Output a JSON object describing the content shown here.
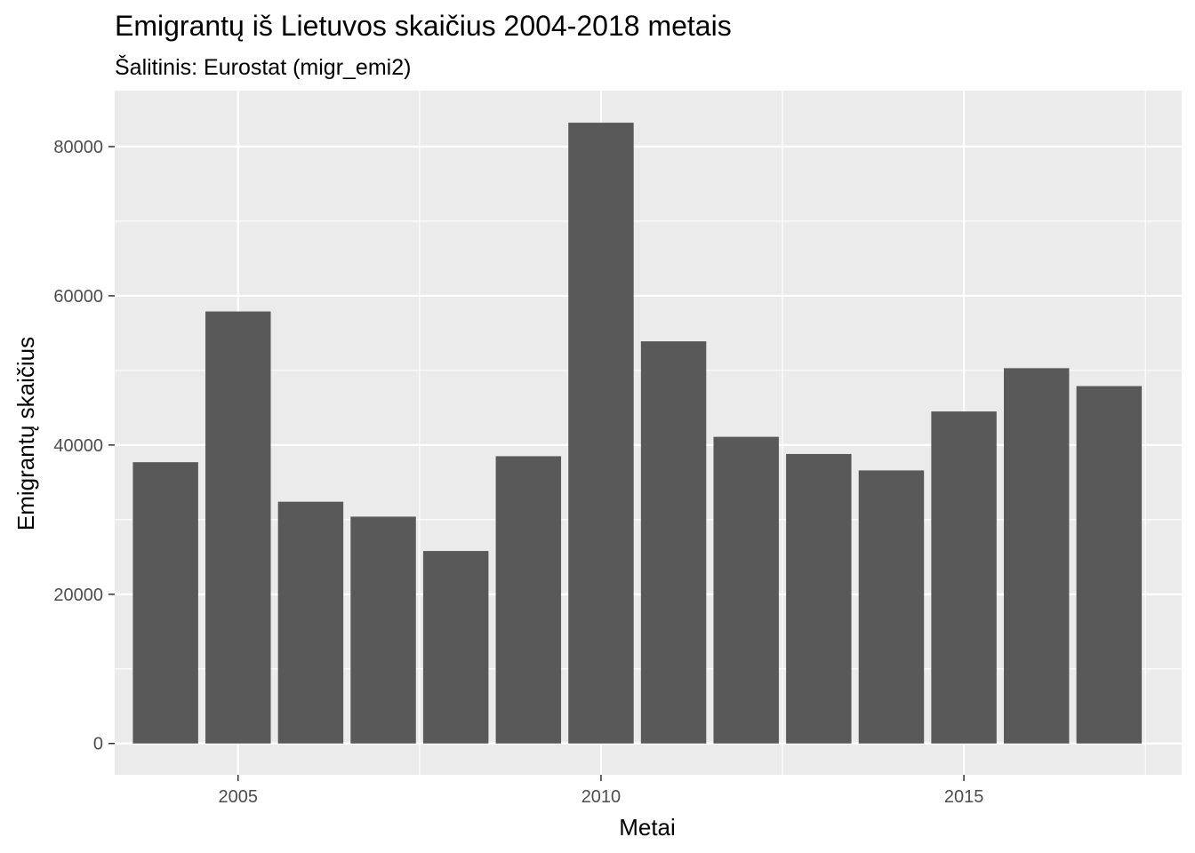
{
  "chart_data": {
    "type": "bar",
    "title": "Emigrantų iš Lietuvos skaičius 2004-2018 metais",
    "subtitle": "Šalitinis: Eurostat (migr_emi2)",
    "xlabel": "Metai",
    "ylabel": "Emigrantų skaičius",
    "x": [
      2004,
      2005,
      2006,
      2007,
      2008,
      2009,
      2010,
      2011,
      2012,
      2013,
      2014,
      2015,
      2016,
      2017
    ],
    "values": [
      37700,
      57900,
      32400,
      30400,
      25800,
      38500,
      83200,
      53900,
      41100,
      38800,
      36600,
      44500,
      50300,
      47900
    ],
    "xlim": [
      2003.3,
      2018.0
    ],
    "ylim": [
      -4200,
      87500
    ],
    "x_ticks": [
      2005,
      2010,
      2015
    ],
    "x_tick_labels": [
      "2005",
      "2010",
      "2015"
    ],
    "y_ticks": [
      0,
      20000,
      40000,
      60000,
      80000
    ],
    "y_tick_labels": [
      "0",
      "20000",
      "40000",
      "60000",
      "80000"
    ],
    "bar_width": 0.9,
    "grid": true,
    "colors": {
      "bar": "#595959",
      "panel": "#ebebeb",
      "grid": "#ffffff"
    }
  }
}
